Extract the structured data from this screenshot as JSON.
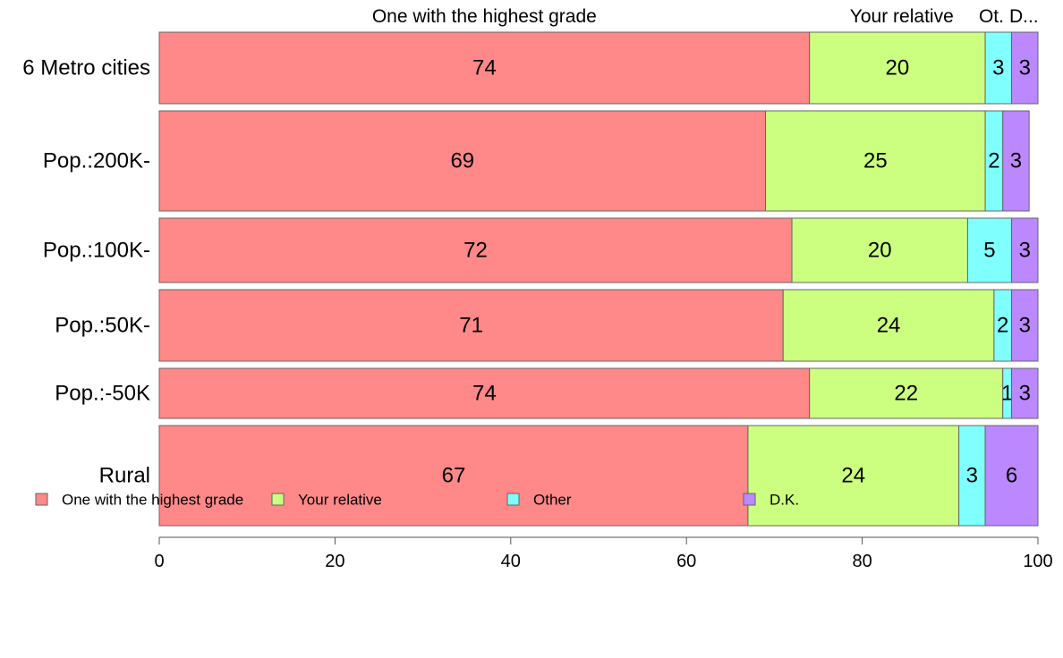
{
  "chart_data": {
    "type": "bar",
    "orientation": "horizontal",
    "stacked": true,
    "categories": [
      "6 Metro cities",
      "Pop.:200K-",
      "Pop.:100K-",
      "Pop.:50K-",
      "Pop.:-50K",
      "Rural"
    ],
    "series": [
      {
        "name": "One with the highest grade",
        "color": "#ff8888",
        "values": [
          74,
          69,
          72,
          71,
          74,
          67
        ]
      },
      {
        "name": "Your relative",
        "color": "#ccff80",
        "values": [
          20,
          25,
          20,
          24,
          22,
          24
        ]
      },
      {
        "name": "Other",
        "color": "#80ffff",
        "values": [
          3,
          2,
          5,
          2,
          1,
          3
        ]
      },
      {
        "name": "D.K.",
        "color": "#bb88ff",
        "values": [
          3,
          3,
          3,
          3,
          3,
          6
        ]
      }
    ],
    "top_labels": [
      "One with the highest grade",
      "Your relative",
      "Ot.",
      "D..."
    ],
    "bar_weights": [
      80,
      112,
      72,
      80,
      56,
      112
    ],
    "xlim": [
      0,
      100
    ],
    "xticks": [
      0,
      20,
      40,
      60,
      80,
      100
    ],
    "grid": false,
    "legend_position": "bottom"
  }
}
